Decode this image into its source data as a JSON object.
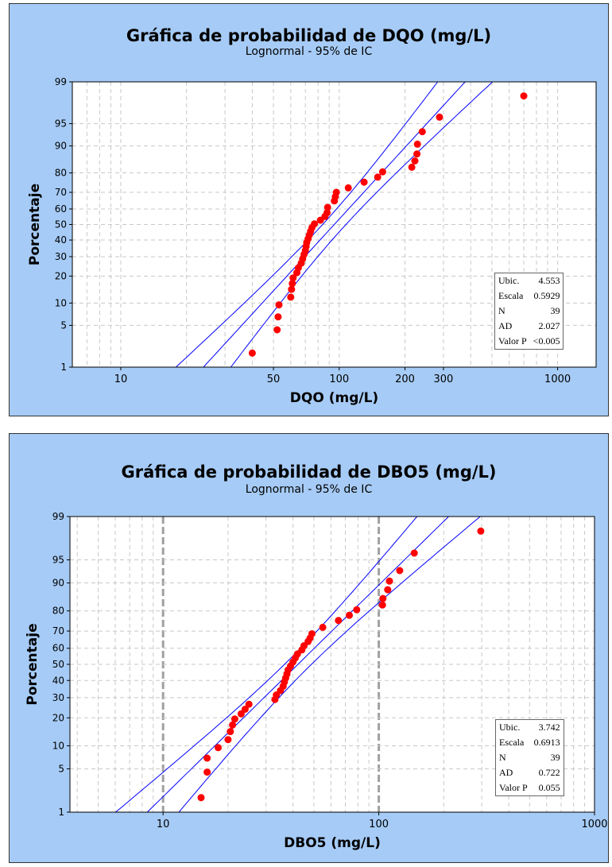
{
  "colors": {
    "background": "#a6cbf6",
    "points": "#ff0000",
    "lines": "#0000ff",
    "grid": "#c8c8c8"
  },
  "chart_data": [
    {
      "type": "scatter",
      "title": "Gráfica de probabilidad de DQO (mg/L)",
      "subtitle": "Lognormal - 95% de IC",
      "xlabel": "DQO (mg/L)",
      "ylabel": "Porcentaje",
      "x_scale": "log",
      "y_scale": "normal-probability",
      "xlim": [
        6,
        1500
      ],
      "ylim": [
        1,
        99
      ],
      "x_ticks": [
        "10",
        "50",
        "100",
        "200",
        "300",
        "1000"
      ],
      "y_ticks": [
        "1",
        "5",
        "10",
        "20",
        "30",
        "40",
        "50",
        "60",
        "70",
        "80",
        "90",
        "95",
        "99"
      ],
      "fit": {
        "location": 4.553,
        "scale": 0.5929,
        "ci_z": 0.6
      },
      "grid": true,
      "legend": "bottom-right",
      "stats": [
        {
          "label": "Ubic.",
          "value": "4.553"
        },
        {
          "label": "Escala",
          "value": "0.5929"
        },
        {
          "label": "N",
          "value": "39"
        },
        {
          "label": "AD",
          "value": "2.027"
        },
        {
          "label": "Valor P",
          "value": "<0.005"
        }
      ],
      "points": [
        [
          40,
          1.8
        ],
        [
          52,
          4.3
        ],
        [
          52.5,
          6.6
        ],
        [
          53,
          9.5
        ],
        [
          60,
          11.8
        ],
        [
          60.5,
          14.5
        ],
        [
          61,
          16.8
        ],
        [
          61.5,
          19.2
        ],
        [
          64,
          21.6
        ],
        [
          65,
          24
        ],
        [
          67,
          26.4
        ],
        [
          68,
          28.8
        ],
        [
          69,
          31.2
        ],
        [
          70,
          33.6
        ],
        [
          70.5,
          36
        ],
        [
          71,
          38.4
        ],
        [
          72,
          40.8
        ],
        [
          73,
          43.2
        ],
        [
          74,
          45.6
        ],
        [
          75,
          48
        ],
        [
          77,
          50.4
        ],
        [
          82,
          52.8
        ],
        [
          86,
          55.2
        ],
        [
          88,
          57.6
        ],
        [
          88.5,
          61
        ],
        [
          95,
          65
        ],
        [
          96,
          67.5
        ],
        [
          97,
          70
        ],
        [
          110,
          72.5
        ],
        [
          130,
          75.5
        ],
        [
          150,
          78
        ],
        [
          158,
          80.5
        ],
        [
          215,
          82.5
        ],
        [
          222,
          85
        ],
        [
          227,
          87.5
        ],
        [
          228,
          90.5
        ],
        [
          240,
          93.5
        ],
        [
          288,
          96
        ],
        [
          700,
          98.2
        ]
      ]
    },
    {
      "type": "scatter",
      "title": "Gráfica de probabilidad de DBO5 (mg/L)",
      "subtitle": "Lognormal - 95% de IC",
      "xlabel": "DBO5 (mg/L)",
      "ylabel": "Porcentaje",
      "x_scale": "log",
      "y_scale": "normal-probability",
      "xlim": [
        3.7,
        1000
      ],
      "ylim": [
        1,
        99
      ],
      "x_ticks": [
        "10",
        "100",
        "1000"
      ],
      "y_ticks": [
        "1",
        "5",
        "10",
        "20",
        "30",
        "40",
        "50",
        "60",
        "70",
        "80",
        "90",
        "95",
        "99"
      ],
      "fit": {
        "location": 3.742,
        "scale": 0.6913,
        "ci_z": 0.6
      },
      "grid": true,
      "legend": "bottom-right",
      "stats": [
        {
          "label": "Ubic.",
          "value": "3.742"
        },
        {
          "label": "Escala",
          "value": "0.6913"
        },
        {
          "label": "N",
          "value": "39"
        },
        {
          "label": "AD",
          "value": "0.722"
        },
        {
          "label": "Valor P",
          "value": "0.055"
        }
      ],
      "points": [
        [
          15,
          1.8
        ],
        [
          16,
          4.5
        ],
        [
          16,
          7
        ],
        [
          18,
          9.5
        ],
        [
          20,
          11.8
        ],
        [
          20.5,
          14.5
        ],
        [
          21,
          17
        ],
        [
          21.5,
          19.5
        ],
        [
          23,
          21.8
        ],
        [
          24,
          24
        ],
        [
          25,
          26.5
        ],
        [
          33,
          29
        ],
        [
          33.5,
          31.5
        ],
        [
          35,
          34
        ],
        [
          36,
          36.5
        ],
        [
          36.5,
          39
        ],
        [
          37,
          41.5
        ],
        [
          37.5,
          44
        ],
        [
          38,
          46.5
        ],
        [
          39,
          49
        ],
        [
          40,
          51.5
        ],
        [
          41,
          54
        ],
        [
          42,
          56.5
        ],
        [
          44,
          59
        ],
        [
          45,
          61.5
        ],
        [
          47,
          64
        ],
        [
          48,
          66
        ],
        [
          49,
          68.5
        ],
        [
          55,
          72
        ],
        [
          65,
          75.5
        ],
        [
          73,
          78
        ],
        [
          79,
          80.5
        ],
        [
          104,
          82.5
        ],
        [
          104.5,
          85
        ],
        [
          110,
          88
        ],
        [
          112,
          90.5
        ],
        [
          125,
          93
        ],
        [
          146,
          96
        ],
        [
          297,
          98.2
        ]
      ]
    }
  ]
}
